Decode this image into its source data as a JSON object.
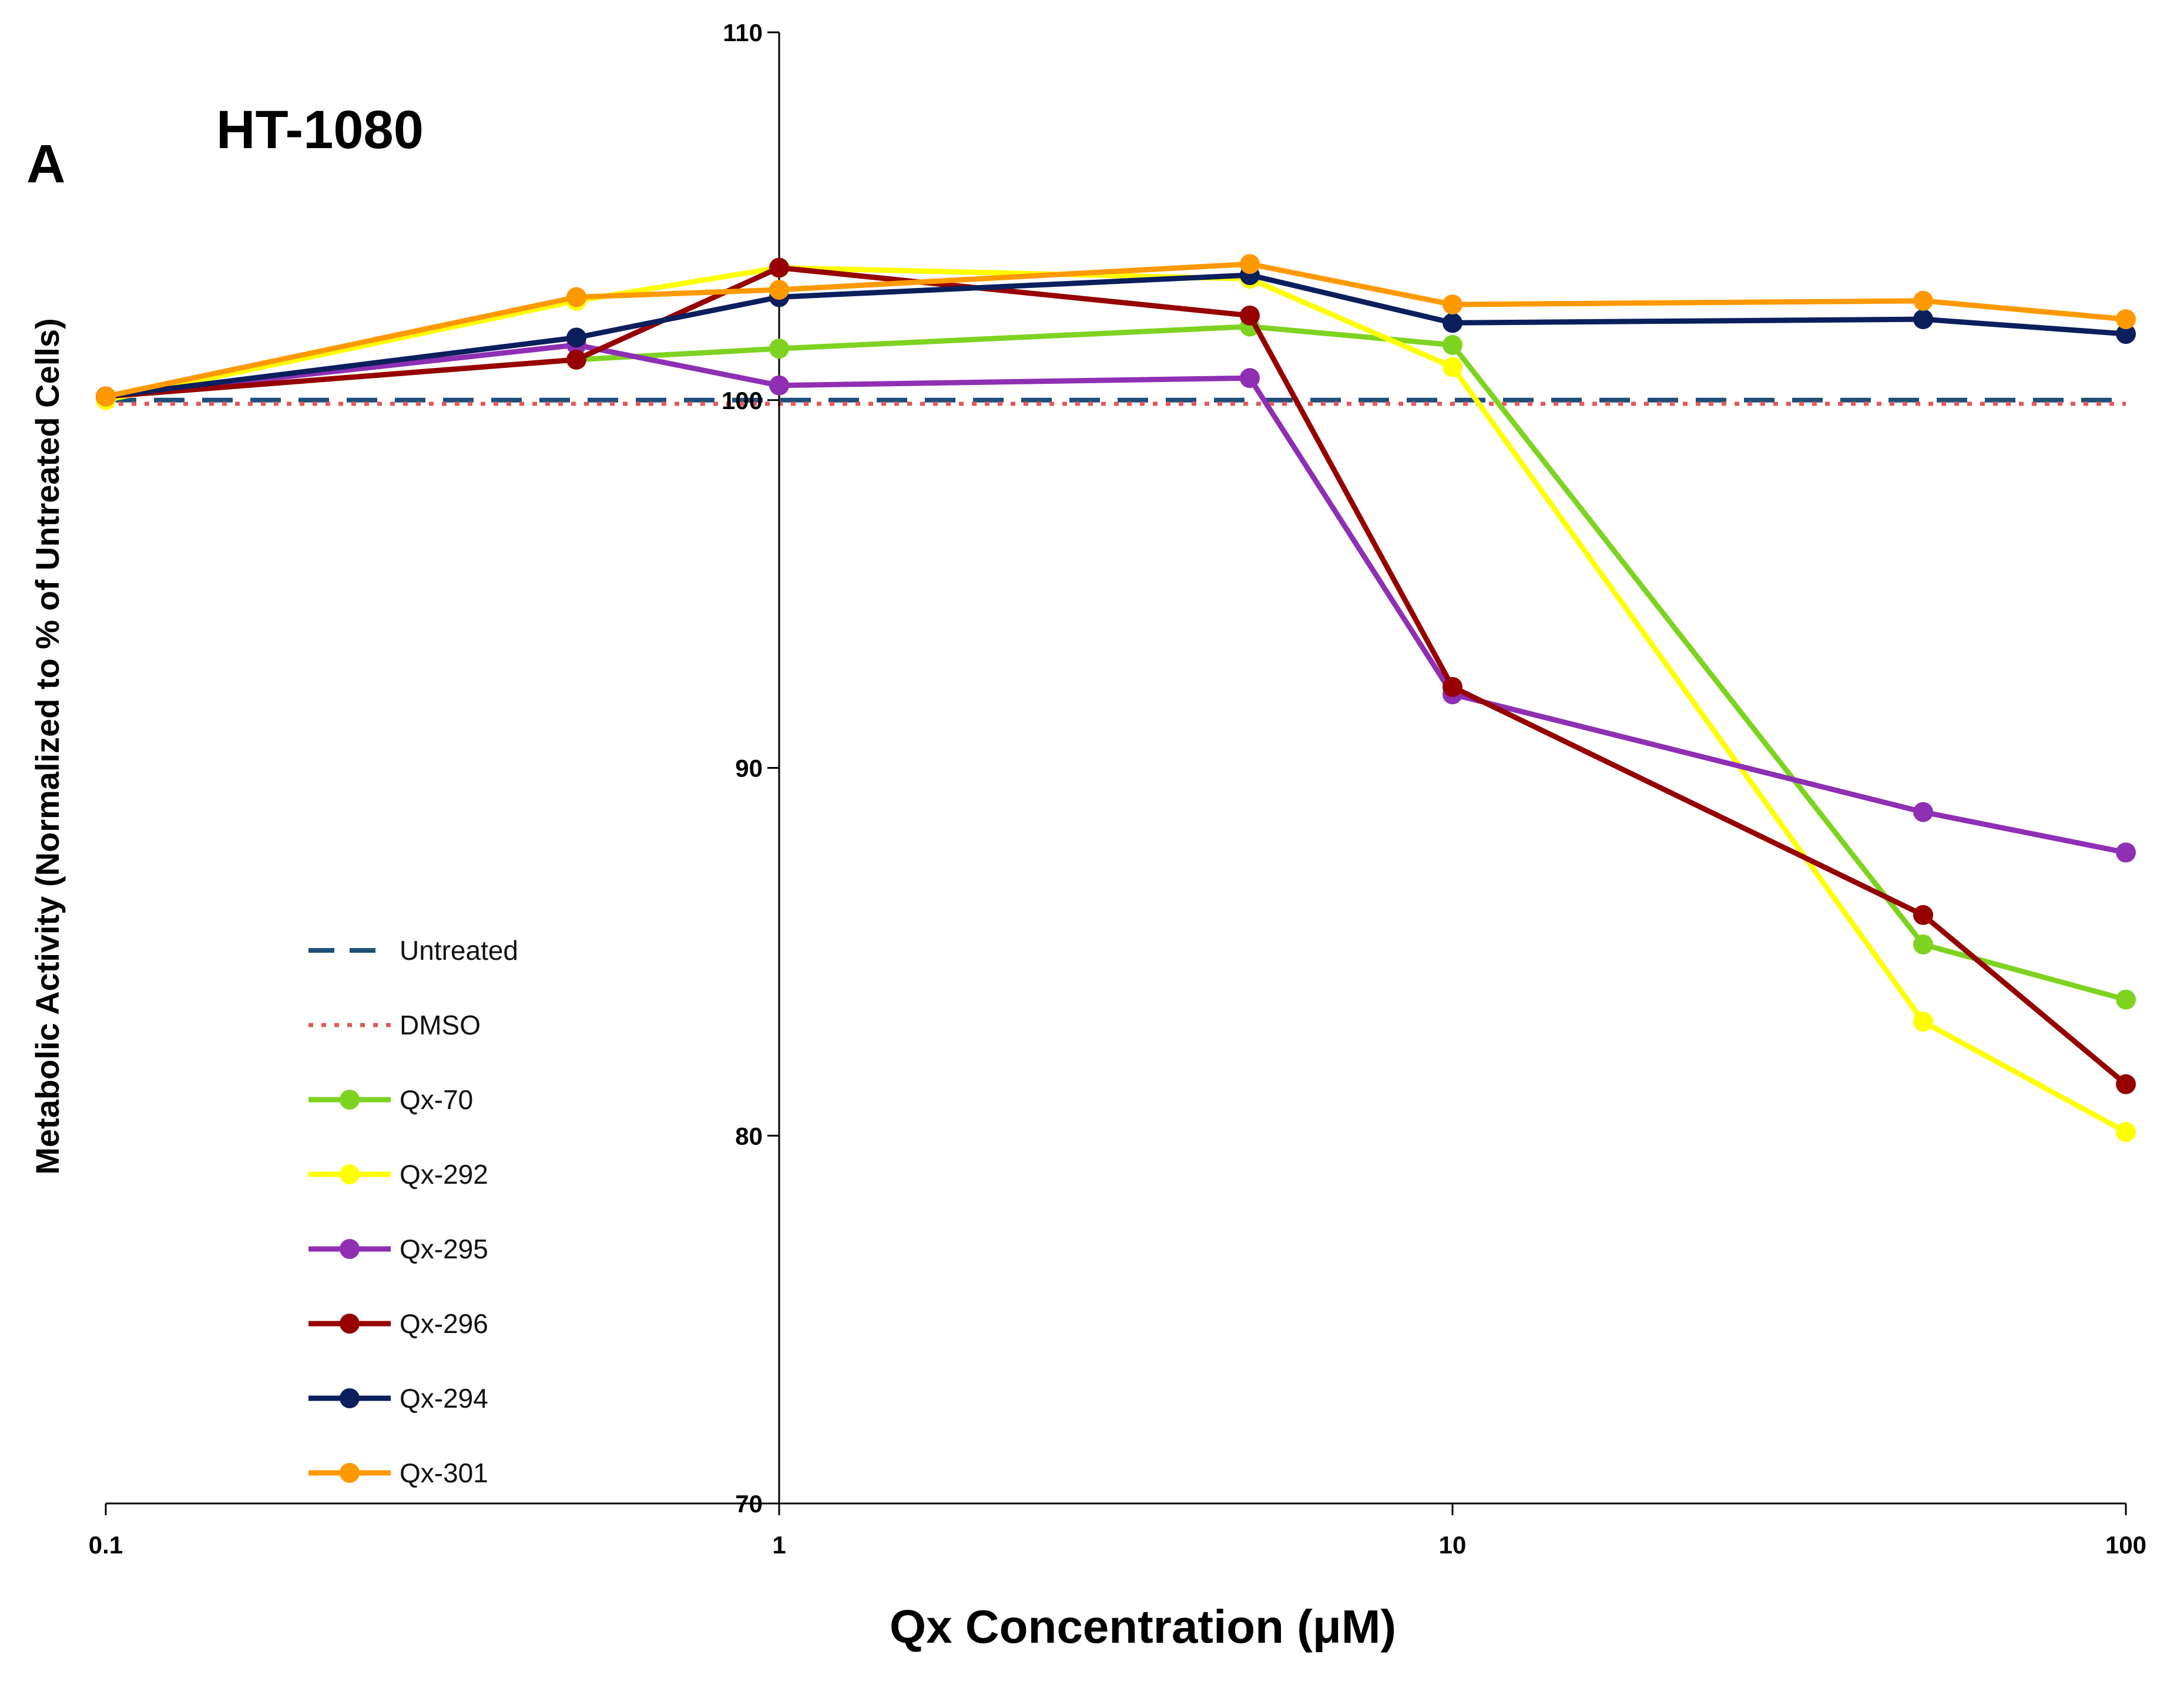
{
  "panel_label": "A",
  "chart_data": {
    "type": "line",
    "title": "HT-1080",
    "xlabel": "Qx Concentration (μM)",
    "ylabel": "Metabolic Activity (Normalized to % of Untreated Cells)",
    "xscale": "log",
    "xlim": [
      0.1,
      100
    ],
    "ylim": [
      70,
      110
    ],
    "x_ticks": [
      0.1,
      1,
      10,
      100
    ],
    "x_tick_labels": [
      "0.1",
      "1",
      "10",
      "100"
    ],
    "y_ticks": [
      70,
      80,
      90,
      100,
      110
    ],
    "y_tick_labels": [
      "70",
      "80",
      "90",
      "100",
      "110"
    ],
    "axis_crossing_x": 1,
    "legend_position": "left",
    "series": [
      {
        "name": "Untreated",
        "color": "#1f4e79",
        "style": "dashed",
        "markers": false,
        "x": [
          0.1,
          100
        ],
        "y": [
          100,
          100
        ]
      },
      {
        "name": "DMSO",
        "color": "#e05a5a",
        "style": "dotted",
        "markers": false,
        "x": [
          0.1,
          100
        ],
        "y": [
          99.9,
          99.9
        ]
      },
      {
        "name": "Qx-70",
        "color": "#7ed321",
        "style": "solid",
        "markers": true,
        "x": [
          0.1,
          0.5,
          1,
          5,
          10,
          50,
          100
        ],
        "y": [
          100.1,
          101.1,
          101.4,
          102.0,
          101.5,
          85.2,
          83.7
        ]
      },
      {
        "name": "Qx-292",
        "color": "#ffff00",
        "style": "solid",
        "markers": true,
        "x": [
          0.1,
          0.5,
          1,
          5,
          10,
          50,
          100
        ],
        "y": [
          100.0,
          102.7,
          103.6,
          103.3,
          100.9,
          83.1,
          80.1
        ]
      },
      {
        "name": "Qx-295",
        "color": "#8e2fb4",
        "style": "solid",
        "markers": true,
        "x": [
          0.1,
          0.5,
          1,
          5,
          10,
          50,
          100
        ],
        "y": [
          100.1,
          101.5,
          100.4,
          100.6,
          92.0,
          88.8,
          87.7
        ]
      },
      {
        "name": "Qx-296",
        "color": "#960000",
        "style": "solid",
        "markers": true,
        "x": [
          0.1,
          0.5,
          1,
          5,
          10,
          50,
          100
        ],
        "y": [
          100.1,
          101.1,
          103.6,
          102.3,
          92.2,
          86.0,
          81.4
        ]
      },
      {
        "name": "Qx-294",
        "color": "#0b1f5c",
        "style": "solid",
        "markers": true,
        "x": [
          0.1,
          0.5,
          1,
          5,
          10,
          50,
          100
        ],
        "y": [
          100.1,
          101.7,
          102.8,
          103.4,
          102.1,
          102.2,
          101.8
        ]
      },
      {
        "name": "Qx-301",
        "color": "#ff9900",
        "style": "solid",
        "markers": true,
        "x": [
          0.1,
          0.5,
          1,
          5,
          10,
          50,
          100
        ],
        "y": [
          100.1,
          102.8,
          103.0,
          103.7,
          102.6,
          102.7,
          102.2
        ]
      }
    ]
  }
}
